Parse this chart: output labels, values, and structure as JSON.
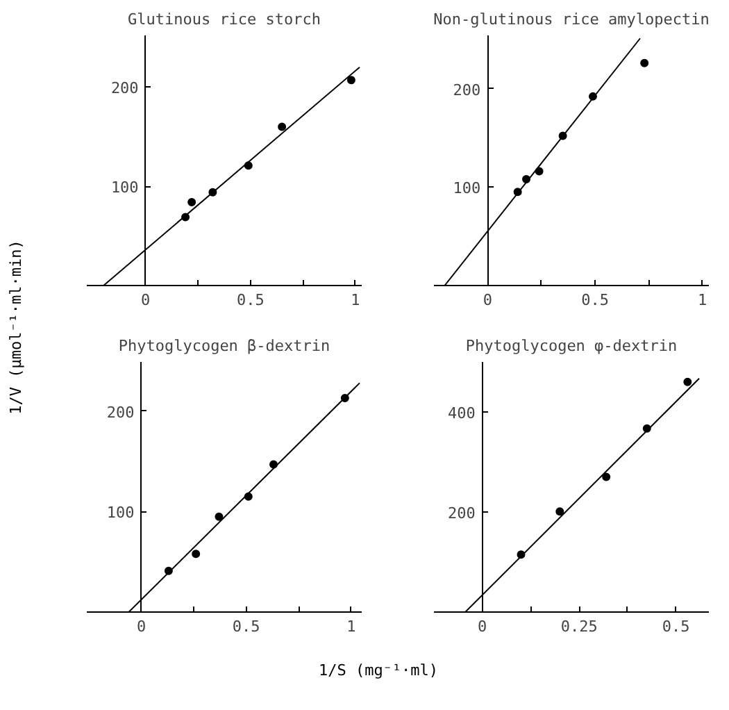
{
  "chart_data": [
    {
      "type": "scatter",
      "title": "Glutinous rice storch",
      "ylabel": "1/V (μmol⁻¹·ml·min)",
      "xlim": [
        -0.28,
        1.03
      ],
      "ylim": [
        0,
        252
      ],
      "xticks": [
        0,
        {
          "value": 0.25,
          "label": null
        },
        {
          "value": 0.5,
          "label": "0.5"
        },
        {
          "value": 0.75,
          "label": null
        },
        1
      ],
      "yticks": [
        100,
        200
      ],
      "marker": "circle",
      "series": [
        {
          "color": "#000000",
          "x": [
            0.19,
            0.22,
            0.32,
            0.49,
            0.65,
            0.98
          ],
          "values": [
            69,
            84,
            94,
            121,
            160,
            207
          ]
        },
        {
          "type": "line",
          "color": "#000000",
          "marker": "none",
          "x": [
            -0.2,
            1.02
          ],
          "values": [
            0,
            220
          ]
        }
      ]
    },
    {
      "type": "scatter",
      "title": "Non-glutinous rice amylopectin",
      "xlim": [
        -0.25,
        1.03
      ],
      "ylim": [
        0,
        254
      ],
      "xticks": [
        0,
        {
          "value": 0.25,
          "label": null
        },
        {
          "value": 0.5,
          "label": "0.5"
        },
        {
          "value": 0.75,
          "label": null
        },
        1
      ],
      "yticks": [
        100,
        200
      ],
      "marker": "circle",
      "series": [
        {
          "color": "#000000",
          "x": [
            0.14,
            0.18,
            0.24,
            0.35,
            0.49,
            0.73
          ],
          "values": [
            95,
            108,
            116,
            152,
            192,
            226
          ]
        },
        {
          "type": "line",
          "color": "#000000",
          "marker": "none",
          "x": [
            -0.2,
            0.71
          ],
          "values": [
            0,
            251
          ]
        }
      ]
    },
    {
      "type": "scatter",
      "title": "Phytoglycogen β-dextrin",
      "xlabel": "1/S (mg⁻¹·ml)",
      "xlim": [
        -0.26,
        1.05
      ],
      "ylim": [
        0,
        249
      ],
      "xticks": [
        0,
        {
          "value": 0.25,
          "label": null
        },
        {
          "value": 0.5,
          "label": "0.5"
        },
        {
          "value": 0.75,
          "label": null
        },
        1
      ],
      "yticks": [
        100,
        200
      ],
      "marker": "circle",
      "series": [
        {
          "color": "#000000",
          "x": [
            0.13,
            0.26,
            0.37,
            0.51,
            0.63,
            0.97
          ],
          "values": [
            41,
            58,
            95,
            115,
            147,
            213
          ]
        },
        {
          "type": "line",
          "color": "#000000",
          "marker": "none",
          "x": [
            -0.06,
            1.04
          ],
          "values": [
            0,
            228
          ]
        }
      ]
    },
    {
      "type": "scatter",
      "title": "Phytoglycogen φ-dextrin",
      "xlim": [
        -0.125,
        0.585
      ],
      "ylim": [
        0,
        500
      ],
      "xticks": [
        0,
        {
          "value": 0.125,
          "label": null
        },
        {
          "value": 0.25,
          "label": "0.25"
        },
        {
          "value": 0.375,
          "label": null
        },
        {
          "value": 0.5,
          "label": "0.5"
        }
      ],
      "yticks": [
        200,
        400
      ],
      "marker": "circle",
      "series": [
        {
          "color": "#000000",
          "x": [
            0.1,
            0.2,
            0.32,
            0.425,
            0.53
          ],
          "values": [
            115,
            201,
            270,
            367,
            460
          ]
        },
        {
          "type": "line",
          "color": "#000000",
          "marker": "none",
          "x": [
            -0.044,
            0.56
          ],
          "values": [
            0,
            467
          ]
        }
      ]
    }
  ]
}
